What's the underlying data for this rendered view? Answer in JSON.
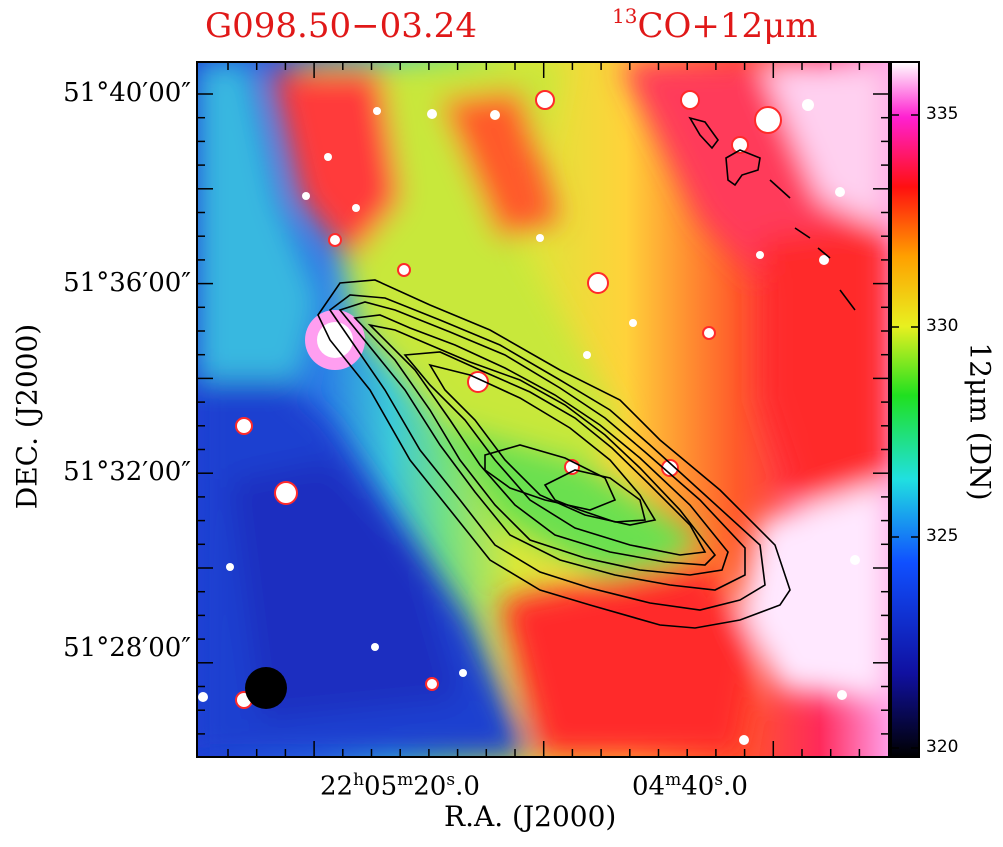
{
  "title_left": "G098.50−03.24",
  "title_right_sup": "13",
  "title_right": "CO+12μm",
  "colors": {
    "title": "#e01818",
    "contours": "#000000",
    "beam": "#000000"
  },
  "chart_data": {
    "type": "heatmap",
    "xlabel": "R.A.  (J2000)",
    "ylabel": "DEC.  (J2000)",
    "colorbar": {
      "label": "12μm  (DN)",
      "ticks": [
        "320",
        "325",
        "330",
        "335"
      ],
      "range": [
        320,
        336.5
      ],
      "colormap": [
        "black",
        "blue",
        "cyan",
        "green",
        "yellow",
        "orange",
        "red",
        "magenta",
        "white"
      ]
    },
    "x_ticks": [
      {
        "h": "22",
        "m": "05",
        "s": "20",
        "frac": "0"
      },
      {
        "m": "04",
        "s": "40",
        "frac": "0"
      }
    ],
    "y_ticks": [
      "51°40′00″",
      "51°36′00″",
      "51°32′00″",
      "51°28′00″"
    ],
    "overlay": "13CO contours",
    "beam": "filled circle, lower left"
  }
}
